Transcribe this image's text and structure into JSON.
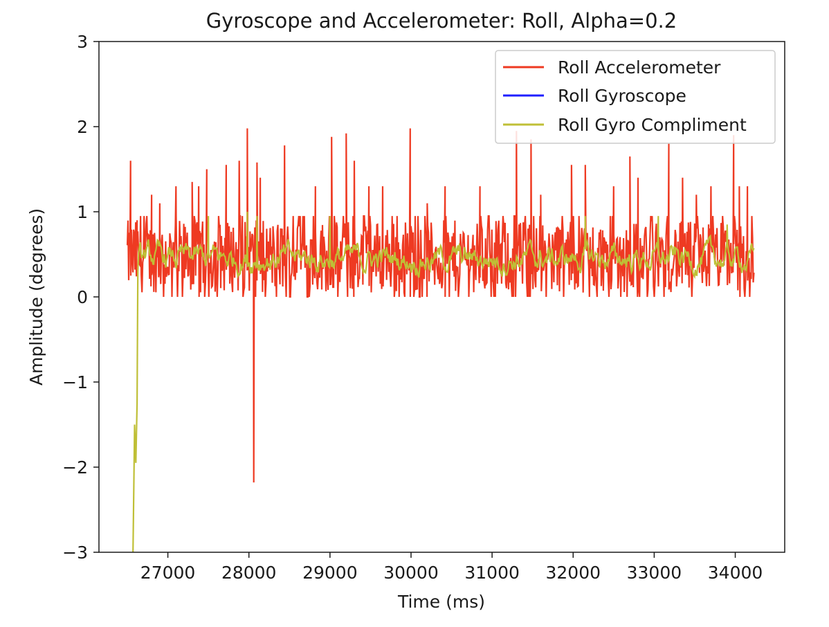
{
  "chart_data": {
    "type": "line",
    "title": "Gyroscope and Accelerometer: Roll, Alpha=0.2",
    "xlabel": "Time (ms)",
    "ylabel": "Amplitude (degrees)",
    "xlim": [
      26150,
      34610
    ],
    "ylim": [
      -3,
      3
    ],
    "xticks": [
      27000,
      28000,
      29000,
      30000,
      31000,
      32000,
      33000,
      34000
    ],
    "xtick_labels": [
      "27000",
      "28000",
      "29000",
      "30000",
      "31000",
      "32000",
      "33000",
      "34000"
    ],
    "yticks": [
      -3,
      -2,
      -1,
      0,
      1,
      2,
      3
    ],
    "ytick_labels": [
      "−3",
      "−2",
      "−1",
      "0",
      "1",
      "2",
      "3"
    ],
    "grid": false,
    "legend_position": "top-right",
    "colors": {
      "Roll Accelerometer": "#ee3a22",
      "Roll Gyroscope": "#1f1fff",
      "Roll Gyro Compliment": "#bfbf36"
    },
    "series": [
      {
        "name": "Roll Accelerometer",
        "x_start": 26500,
        "x_end": 34230,
        "baseline_range": [
          0.0,
          0.95
        ],
        "spikes": [
          {
            "x": 26540,
            "y": 1.6
          },
          {
            "x": 26620,
            "y": 0.9
          },
          {
            "x": 26800,
            "y": 1.2
          },
          {
            "x": 26900,
            "y": 1.1
          },
          {
            "x": 27100,
            "y": 1.3
          },
          {
            "x": 27300,
            "y": 1.35
          },
          {
            "x": 27380,
            "y": 1.3
          },
          {
            "x": 27480,
            "y": 1.5
          },
          {
            "x": 27720,
            "y": 1.55
          },
          {
            "x": 27880,
            "y": 1.6
          },
          {
            "x": 27980,
            "y": 1.98
          },
          {
            "x": 28060,
            "y": -2.18
          },
          {
            "x": 28100,
            "y": 1.58
          },
          {
            "x": 28140,
            "y": 1.4
          },
          {
            "x": 28440,
            "y": 1.78
          },
          {
            "x": 28820,
            "y": 1.3
          },
          {
            "x": 29020,
            "y": 1.88
          },
          {
            "x": 29200,
            "y": 1.92
          },
          {
            "x": 29300,
            "y": 1.6
          },
          {
            "x": 29480,
            "y": 1.3
          },
          {
            "x": 29650,
            "y": 1.3
          },
          {
            "x": 29990,
            "y": 1.98
          },
          {
            "x": 30200,
            "y": 1.1
          },
          {
            "x": 30420,
            "y": 1.3
          },
          {
            "x": 30850,
            "y": 1.3
          },
          {
            "x": 31300,
            "y": 1.95
          },
          {
            "x": 31480,
            "y": 1.85
          },
          {
            "x": 31600,
            "y": 1.2
          },
          {
            "x": 31980,
            "y": 1.55
          },
          {
            "x": 32150,
            "y": 1.55
          },
          {
            "x": 32500,
            "y": 1.3
          },
          {
            "x": 32700,
            "y": 1.65
          },
          {
            "x": 32800,
            "y": 1.4
          },
          {
            "x": 33180,
            "y": 1.8
          },
          {
            "x": 33350,
            "y": 1.4
          },
          {
            "x": 33520,
            "y": 1.2
          },
          {
            "x": 33700,
            "y": 1.3
          },
          {
            "x": 33980,
            "y": 1.9
          },
          {
            "x": 34050,
            "y": 1.3
          },
          {
            "x": 34150,
            "y": 1.3
          }
        ]
      },
      {
        "name": "Roll Gyroscope",
        "values_visible": false
      },
      {
        "name": "Roll Gyro Compliment",
        "x_start": 26570,
        "x_end": 34230,
        "baseline_range": [
          0.1,
          0.8
        ],
        "initial_points": [
          {
            "x": 26570,
            "y": -3.0
          },
          {
            "x": 26590,
            "y": -1.5
          },
          {
            "x": 26605,
            "y": -1.95
          },
          {
            "x": 26620,
            "y": -1.25
          },
          {
            "x": 26630,
            "y": 0.3
          }
        ],
        "peaks": [
          {
            "x": 27500,
            "y": 0.95
          },
          {
            "x": 27980,
            "y": 1.0
          },
          {
            "x": 28100,
            "y": 0.95
          },
          {
            "x": 29000,
            "y": 0.95
          },
          {
            "x": 32150,
            "y": 0.95
          },
          {
            "x": 33050,
            "y": 0.95
          },
          {
            "x": 33900,
            "y": 0.85
          }
        ]
      }
    ]
  }
}
